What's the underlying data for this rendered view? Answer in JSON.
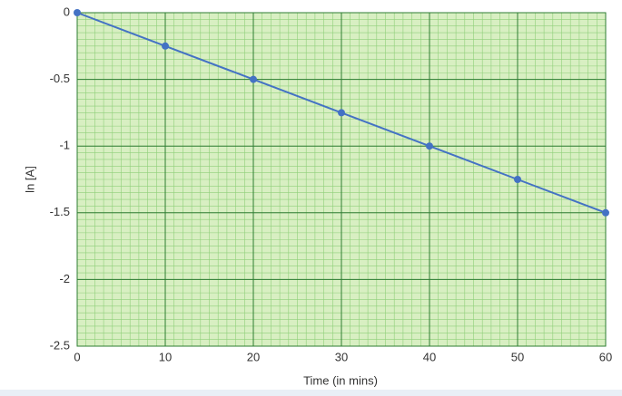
{
  "chart_data": {
    "type": "line",
    "x": [
      0,
      10,
      20,
      30,
      40,
      50,
      60
    ],
    "series": [
      {
        "color": "#4472c4",
        "values": [
          0,
          -0.25,
          -0.5,
          -0.75,
          -1,
          -1.25,
          -1.5
        ]
      }
    ],
    "xlabel": "Time (in mins)",
    "ylabel": "ln [A]",
    "xlim": [
      0,
      60
    ],
    "ylim": [
      -2.5,
      0
    ],
    "xticks": [
      0,
      10,
      20,
      30,
      40,
      50,
      60
    ],
    "yticks": [
      0,
      -0.5,
      -1,
      -1.5,
      -2,
      -2.5
    ],
    "grid": true
  }
}
